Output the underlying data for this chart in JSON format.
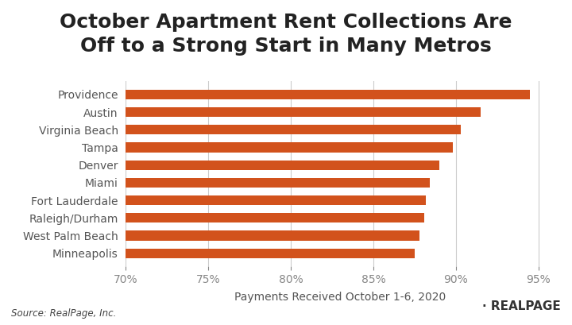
{
  "title_line1": "October Apartment Rent Collections Are",
  "title_line2": "Off to a Strong Start in Many Metros",
  "categories": [
    "Minneapolis",
    "West Palm Beach",
    "Raleigh/Durham",
    "Fort Lauderdale",
    "Miami",
    "Denver",
    "Tampa",
    "Virginia Beach",
    "Austin",
    "Providence"
  ],
  "values": [
    87.5,
    87.8,
    88.1,
    88.2,
    88.4,
    89.0,
    89.8,
    90.3,
    91.5,
    94.5
  ],
  "bar_color": "#D2521C",
  "xlabel": "Payments Received October 1-6, 2020",
  "source_text": "Source: RealPage, Inc.",
  "xlim_left": 70,
  "xlim_right": 96,
  "xtick_values": [
    70,
    75,
    80,
    85,
    90,
    95
  ],
  "background_color": "#ffffff",
  "grid_color": "#cccccc",
  "bar_height": 0.55,
  "title_fontsize": 18,
  "label_fontsize": 10,
  "tick_fontsize": 10,
  "xlabel_fontsize": 10
}
